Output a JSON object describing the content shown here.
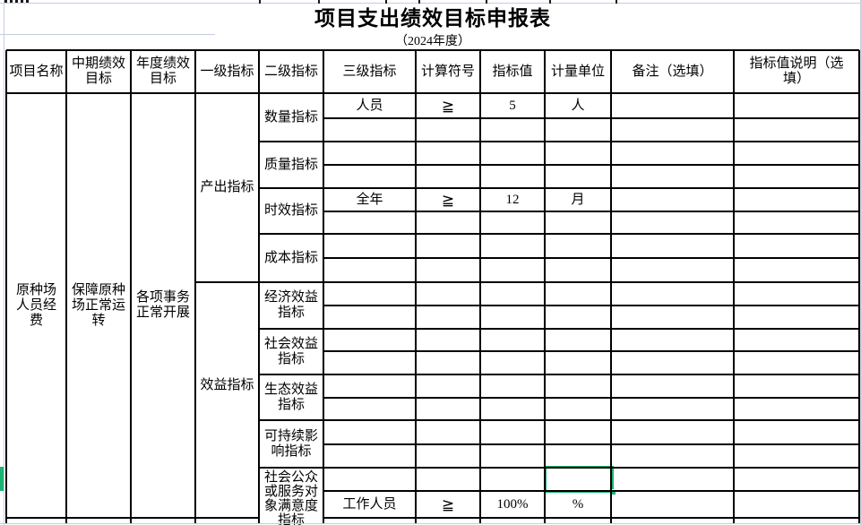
{
  "title": "项目支出绩效目标申报表",
  "subtitle": "（2024年度）",
  "columns": {
    "project_name": "项目名称",
    "mid_term": "中期绩效目标",
    "annual": "年度绩效目标",
    "level1": "一级指标",
    "level2": "二级指标",
    "level3": "三级指标",
    "calc_symbol": "计算符号",
    "indicator_value": "指标值",
    "measure_unit": "计量单位",
    "note": "备注（选填）",
    "value_desc": "指标值说明（选填）"
  },
  "body": {
    "project_name": "原种场人员经费",
    "mid_term_goal": "保障原种场正常运转",
    "annual_goal": "各项事务正常开展",
    "level1_output": "产出指标",
    "level1_benefit": "效益指标",
    "level2": {
      "quantity": "数量指标",
      "quality": "质量指标",
      "timeliness": "时效指标",
      "cost": "成本指标",
      "economic": "经济效益指标",
      "social": "社会效益指标",
      "ecological": "生态效益指标",
      "sustainable": "可持续影响指标",
      "satisfaction": "社会公众或服务对象满意度指标"
    },
    "entries": {
      "quantity": {
        "indicator": "人员",
        "symbol": "≧",
        "value": "5",
        "unit": "人"
      },
      "timeliness": {
        "indicator": "全年",
        "symbol": "≧",
        "value": "12",
        "unit": "月"
      },
      "satisfaction": {
        "indicator": "工作人员",
        "symbol": "≧",
        "value": "100%",
        "unit": "%"
      }
    }
  },
  "selection": {
    "color": "#1eb373"
  }
}
